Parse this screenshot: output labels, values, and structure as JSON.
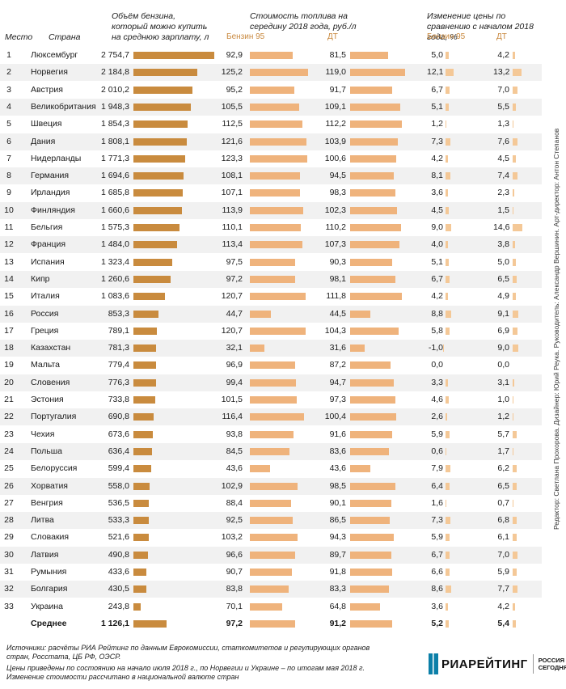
{
  "headers": {
    "col_place": "Место",
    "col_country": "Страна",
    "col_volume": "Объём бензина, который можно купить на среднюю зарплату, л",
    "col_cost": "Стоимость топлива на середину 2018 года, руб./л",
    "col_change": "Изменение цены по сравнению с началом 2018 года, %",
    "fuel_b95": "Бензин 95",
    "fuel_dt": "ДТ",
    "fuel_b95_change": "Бензин 95",
    "fuel_dt_change": "ДТ"
  },
  "colors": {
    "volume_bar": "#c98b3e",
    "price_bar": "#efb37c",
    "change_bar": "#f4c897",
    "row_alt": "#f1f1f1"
  },
  "chart_data": {
    "type": "table",
    "columns": [
      "Место",
      "Страна",
      "Объём бензина, л",
      "Бензин 95, руб./л",
      "ДТ, руб./л",
      "Бензин 95, %",
      "ДТ, %"
    ],
    "rows": [
      {
        "place": "1",
        "country": "Люксембург",
        "volume": "2 754,7",
        "b95": "92,9",
        "dt": "81,5",
        "b95_chg": "5,0",
        "dt_chg": "4,2"
      },
      {
        "place": "2",
        "country": "Норвегия",
        "volume": "2 184,8",
        "b95": "125,2",
        "dt": "119,0",
        "b95_chg": "12,1",
        "dt_chg": "13,2"
      },
      {
        "place": "3",
        "country": "Австрия",
        "volume": "2 010,2",
        "b95": "95,2",
        "dt": "91,7",
        "b95_chg": "6,7",
        "dt_chg": "7,0"
      },
      {
        "place": "4",
        "country": "Великобритания",
        "volume": "1 948,3",
        "b95": "105,5",
        "dt": "109,1",
        "b95_chg": "5,1",
        "dt_chg": "5,5"
      },
      {
        "place": "5",
        "country": "Швеция",
        "volume": "1 854,3",
        "b95": "112,5",
        "dt": "112,2",
        "b95_chg": "1,2",
        "dt_chg": "1,3"
      },
      {
        "place": "6",
        "country": "Дания",
        "volume": "1 808,1",
        "b95": "121,6",
        "dt": "103,9",
        "b95_chg": "7,3",
        "dt_chg": "7,6"
      },
      {
        "place": "7",
        "country": "Нидерланды",
        "volume": "1 771,3",
        "b95": "123,3",
        "dt": "100,6",
        "b95_chg": "4,2",
        "dt_chg": "4,5"
      },
      {
        "place": "8",
        "country": "Германия",
        "volume": "1 694,6",
        "b95": "108,1",
        "dt": "94,5",
        "b95_chg": "8,1",
        "dt_chg": "7,4"
      },
      {
        "place": "9",
        "country": "Ирландия",
        "volume": "1 685,8",
        "b95": "107,1",
        "dt": "98,3",
        "b95_chg": "3,6",
        "dt_chg": "2,3"
      },
      {
        "place": "10",
        "country": "Финляндия",
        "volume": "1 660,6",
        "b95": "113,9",
        "dt": "102,3",
        "b95_chg": "4,5",
        "dt_chg": "1,5"
      },
      {
        "place": "11",
        "country": "Бельгия",
        "volume": "1 575,3",
        "b95": "110,1",
        "dt": "110,2",
        "b95_chg": "9,0",
        "dt_chg": "14,6"
      },
      {
        "place": "12",
        "country": "Франция",
        "volume": "1 484,0",
        "b95": "113,4",
        "dt": "107,3",
        "b95_chg": "4,0",
        "dt_chg": "3,8"
      },
      {
        "place": "13",
        "country": "Испания",
        "volume": "1 323,4",
        "b95": "97,5",
        "dt": "90,3",
        "b95_chg": "5,1",
        "dt_chg": "5,0"
      },
      {
        "place": "14",
        "country": "Кипр",
        "volume": "1 260,6",
        "b95": "97,2",
        "dt": "98,1",
        "b95_chg": "6,7",
        "dt_chg": "6,5"
      },
      {
        "place": "15",
        "country": "Италия",
        "volume": "1 083,6",
        "b95": "120,7",
        "dt": "111,8",
        "b95_chg": "4,2",
        "dt_chg": "4,9"
      },
      {
        "place": "16",
        "country": "Россия",
        "volume": "853,3",
        "b95": "44,7",
        "dt": "44,5",
        "b95_chg": "8,8",
        "dt_chg": "9,1"
      },
      {
        "place": "17",
        "country": "Греция",
        "volume": "789,1",
        "b95": "120,7",
        "dt": "104,3",
        "b95_chg": "5,8",
        "dt_chg": "6,9"
      },
      {
        "place": "18",
        "country": "Казахстан",
        "volume": "781,3",
        "b95": "32,1",
        "dt": "31,6",
        "b95_chg": "-1,0",
        "dt_chg": "9,0"
      },
      {
        "place": "19",
        "country": "Мальта",
        "volume": "779,4",
        "b95": "96,9",
        "dt": "87,2",
        "b95_chg": "0,0",
        "dt_chg": "0,0"
      },
      {
        "place": "20",
        "country": "Словения",
        "volume": "776,3",
        "b95": "99,4",
        "dt": "94,7",
        "b95_chg": "3,3",
        "dt_chg": "3,1"
      },
      {
        "place": "21",
        "country": "Эстония",
        "volume": "733,8",
        "b95": "101,5",
        "dt": "97,3",
        "b95_chg": "4,6",
        "dt_chg": "1,0"
      },
      {
        "place": "22",
        "country": "Португалия",
        "volume": "690,8",
        "b95": "116,4",
        "dt": "100,4",
        "b95_chg": "2,6",
        "dt_chg": "1,2"
      },
      {
        "place": "23",
        "country": "Чехия",
        "volume": "673,6",
        "b95": "93,8",
        "dt": "91,6",
        "b95_chg": "5,9",
        "dt_chg": "5,7"
      },
      {
        "place": "24",
        "country": "Польша",
        "volume": "636,4",
        "b95": "84,5",
        "dt": "83,6",
        "b95_chg": "0,6",
        "dt_chg": "1,7"
      },
      {
        "place": "25",
        "country": "Белоруссия",
        "volume": "599,4",
        "b95": "43,6",
        "dt": "43,6",
        "b95_chg": "7,9",
        "dt_chg": "6,2"
      },
      {
        "place": "26",
        "country": "Хорватия",
        "volume": "558,0",
        "b95": "102,9",
        "dt": "98,5",
        "b95_chg": "6,4",
        "dt_chg": "6,5"
      },
      {
        "place": "27",
        "country": "Венгрия",
        "volume": "536,5",
        "b95": "88,4",
        "dt": "90,1",
        "b95_chg": "1,6",
        "dt_chg": "0,7"
      },
      {
        "place": "28",
        "country": "Литва",
        "volume": "533,3",
        "b95": "92,5",
        "dt": "86,5",
        "b95_chg": "7,3",
        "dt_chg": "6,8"
      },
      {
        "place": "29",
        "country": "Словакия",
        "volume": "521,6",
        "b95": "103,2",
        "dt": "94,3",
        "b95_chg": "5,9",
        "dt_chg": "6,1"
      },
      {
        "place": "30",
        "country": "Латвия",
        "volume": "490,8",
        "b95": "96,6",
        "dt": "89,7",
        "b95_chg": "6,7",
        "dt_chg": "7,0"
      },
      {
        "place": "31",
        "country": "Румыния",
        "volume": "433,6",
        "b95": "90,7",
        "dt": "91,8",
        "b95_chg": "6,6",
        "dt_chg": "5,9"
      },
      {
        "place": "32",
        "country": "Болгария",
        "volume": "430,5",
        "b95": "83,8",
        "dt": "83,3",
        "b95_chg": "8,6",
        "dt_chg": "7,7"
      },
      {
        "place": "33",
        "country": "Украина",
        "volume": "243,8",
        "b95": "70,1",
        "dt": "64,8",
        "b95_chg": "3,6",
        "dt_chg": "4,2"
      }
    ],
    "average": {
      "place": "",
      "country": "Среднее",
      "volume": "1 126,1",
      "b95": "97,2",
      "dt": "91,2",
      "b95_chg": "5,2",
      "dt_chg": "5,4"
    }
  },
  "footer": {
    "sources": "Источники: расчёты РИА Рейтинг по данным Еврокомиссии, статкомитетов и регулирующих органов стран, Росстата, ЦБ РФ, ОЭСР.",
    "note1": "Цены приведены по состоянию на начало июля 2018 г., по Норвегии и Украине – по итогам мая 2018 г.",
    "note2": "Изменение стоимости рассчитано в национальной валюте стран"
  },
  "credits": "Редактор: Светлана Прохорова. Дизайнер: Юрий Реука. Руководитель: Александр Вершинин. Арт-директор: Антон Степанов",
  "logo": {
    "name": "РИАРЕЙТИНГ",
    "line1": "РОССИЯ",
    "line2": "СЕГОДНЯ"
  }
}
